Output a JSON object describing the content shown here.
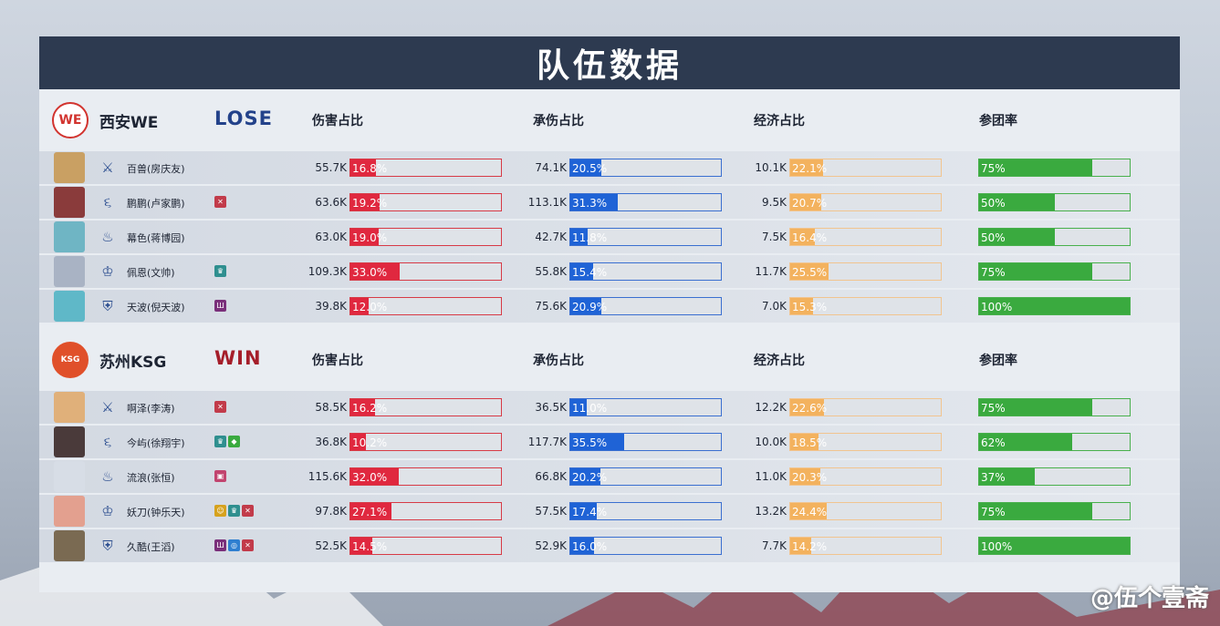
{
  "title": "队伍数据",
  "col_headers": {
    "damage": "伤害占比",
    "taken": "承伤占比",
    "economy": "经济占比",
    "participation": "参团率"
  },
  "watermark": "@伍个壹斋",
  "teams": [
    {
      "logo": "WE",
      "name": "西安WE",
      "result": "LOSE",
      "players": [
        {
          "name": "百兽(房庆友)",
          "role_icon": "sword-icon",
          "avatar_color": "#c9a063",
          "badges": [],
          "damage": "55.7K",
          "damage_pct": "16.8%",
          "damage_v": 16.8,
          "taken": "74.1K",
          "taken_pct": "20.5%",
          "taken_v": 20.5,
          "econ": "10.1K",
          "econ_pct": "22.1%",
          "econ_v": 22.1,
          "part_pct": "75%",
          "part_v": 75
        },
        {
          "name": "鹏鹏(卢家鹏)",
          "role_icon": "wind-icon",
          "avatar_color": "#8a3b3b",
          "badges": [
            {
              "icon": "flag-icon",
              "color": "#c23b4a",
              "g": "✕"
            }
          ],
          "damage": "63.6K",
          "damage_pct": "19.2%",
          "damage_v": 19.2,
          "taken": "113.1K",
          "taken_pct": "31.3%",
          "taken_v": 31.3,
          "econ": "9.5K",
          "econ_pct": "20.7%",
          "econ_v": 20.7,
          "part_pct": "50%",
          "part_v": 50
        },
        {
          "name": "幕色(蒋博园)",
          "role_icon": "flame-icon",
          "avatar_color": "#6fb5c4",
          "badges": [],
          "damage": "63.0K",
          "damage_pct": "19.0%",
          "damage_v": 19.0,
          "taken": "42.7K",
          "taken_pct": "11.8%",
          "taken_v": 11.8,
          "econ": "7.5K",
          "econ_pct": "16.4%",
          "econ_v": 16.4,
          "part_pct": "50%",
          "part_v": 50
        },
        {
          "name": "佩恩(文帅)",
          "role_icon": "crown-icon",
          "avatar_color": "#a9b3c4",
          "badges": [
            {
              "icon": "crown-badge-icon",
              "color": "#2f8f8f",
              "g": "♛"
            }
          ],
          "damage": "109.3K",
          "damage_pct": "33.0%",
          "damage_v": 33.0,
          "taken": "55.8K",
          "taken_pct": "15.4%",
          "taken_v": 15.4,
          "econ": "11.7K",
          "econ_pct": "25.5%",
          "econ_v": 25.5,
          "part_pct": "75%",
          "part_v": 75
        },
        {
          "name": "天波(倪天波)",
          "role_icon": "shield-role-icon",
          "avatar_color": "#5fb8c8",
          "badges": [
            {
              "icon": "tower-icon",
              "color": "#7a2f7a",
              "g": "Ш"
            }
          ],
          "damage": "39.8K",
          "damage_pct": "12.0%",
          "damage_v": 12.0,
          "taken": "75.6K",
          "taken_pct": "20.9%",
          "taken_v": 20.9,
          "econ": "7.0K",
          "econ_pct": "15.3%",
          "econ_v": 15.3,
          "part_pct": "100%",
          "part_v": 100
        }
      ]
    },
    {
      "logo": "KSG",
      "name": "苏州KSG",
      "result": "WIN",
      "players": [
        {
          "name": "啊泽(李涛)",
          "role_icon": "sword-icon",
          "avatar_color": "#e0b07a",
          "badges": [
            {
              "icon": "flag-icon",
              "color": "#c23b4a",
              "g": "✕"
            }
          ],
          "damage": "58.5K",
          "damage_pct": "16.2%",
          "damage_v": 16.2,
          "taken": "36.5K",
          "taken_pct": "11.0%",
          "taken_v": 11.0,
          "econ": "12.2K",
          "econ_pct": "22.6%",
          "econ_v": 22.6,
          "part_pct": "75%",
          "part_v": 75
        },
        {
          "name": "今屿(徐翔宇)",
          "role_icon": "wind-icon",
          "avatar_color": "#4a3a3a",
          "badges": [
            {
              "icon": "crown-badge-icon",
              "color": "#2f8f8f",
              "g": "♛"
            },
            {
              "icon": "shield-badge-icon",
              "color": "#3aaa3f",
              "g": "◆"
            }
          ],
          "damage": "36.8K",
          "damage_pct": "10.2%",
          "damage_v": 10.2,
          "taken": "117.7K",
          "taken_pct": "35.5%",
          "taken_v": 35.5,
          "econ": "10.0K",
          "econ_pct": "18.5%",
          "econ_v": 18.5,
          "part_pct": "62%",
          "part_v": 62
        },
        {
          "name": "流浪(张恒)",
          "role_icon": "flame-icon",
          "avatar_color": "#d7dde6",
          "badges": [
            {
              "icon": "bag-icon",
              "color": "#c2446f",
              "g": "▣"
            }
          ],
          "damage": "115.6K",
          "damage_pct": "32.0%",
          "damage_v": 32.0,
          "taken": "66.8K",
          "taken_pct": "20.2%",
          "taken_v": 20.2,
          "econ": "11.0K",
          "econ_pct": "20.3%",
          "econ_v": 20.3,
          "part_pct": "37%",
          "part_v": 37
        },
        {
          "name": "妖刀(钟乐天)",
          "role_icon": "crown-icon",
          "avatar_color": "#e3a08f",
          "badges": [
            {
              "icon": "smile-icon",
              "color": "#d6a21e",
              "g": "☺"
            },
            {
              "icon": "crown-badge-icon",
              "color": "#2f8f8f",
              "g": "♛"
            },
            {
              "icon": "flag-icon",
              "color": "#c23b4a",
              "g": "✕"
            }
          ],
          "damage": "97.8K",
          "damage_pct": "27.1%",
          "damage_v": 27.1,
          "taken": "57.5K",
          "taken_pct": "17.4%",
          "taken_v": 17.4,
          "econ": "13.2K",
          "econ_pct": "24.4%",
          "econ_v": 24.4,
          "part_pct": "75%",
          "part_v": 75
        },
        {
          "name": "久酷(王滔)",
          "role_icon": "shield-role-icon",
          "avatar_color": "#7a6a52",
          "badges": [
            {
              "icon": "tower-icon",
              "color": "#7a2f7a",
              "g": "Ш"
            },
            {
              "icon": "swirl-icon",
              "color": "#2f7fd0",
              "g": "◎"
            },
            {
              "icon": "flag-icon",
              "color": "#c23b4a",
              "g": "✕"
            }
          ],
          "damage": "52.5K",
          "damage_pct": "14.5%",
          "damage_v": 14.5,
          "taken": "52.9K",
          "taken_pct": "16.0%",
          "taken_v": 16.0,
          "econ": "7.7K",
          "econ_pct": "14.2%",
          "econ_v": 14.2,
          "part_pct": "100%",
          "part_v": 100
        }
      ]
    }
  ]
}
